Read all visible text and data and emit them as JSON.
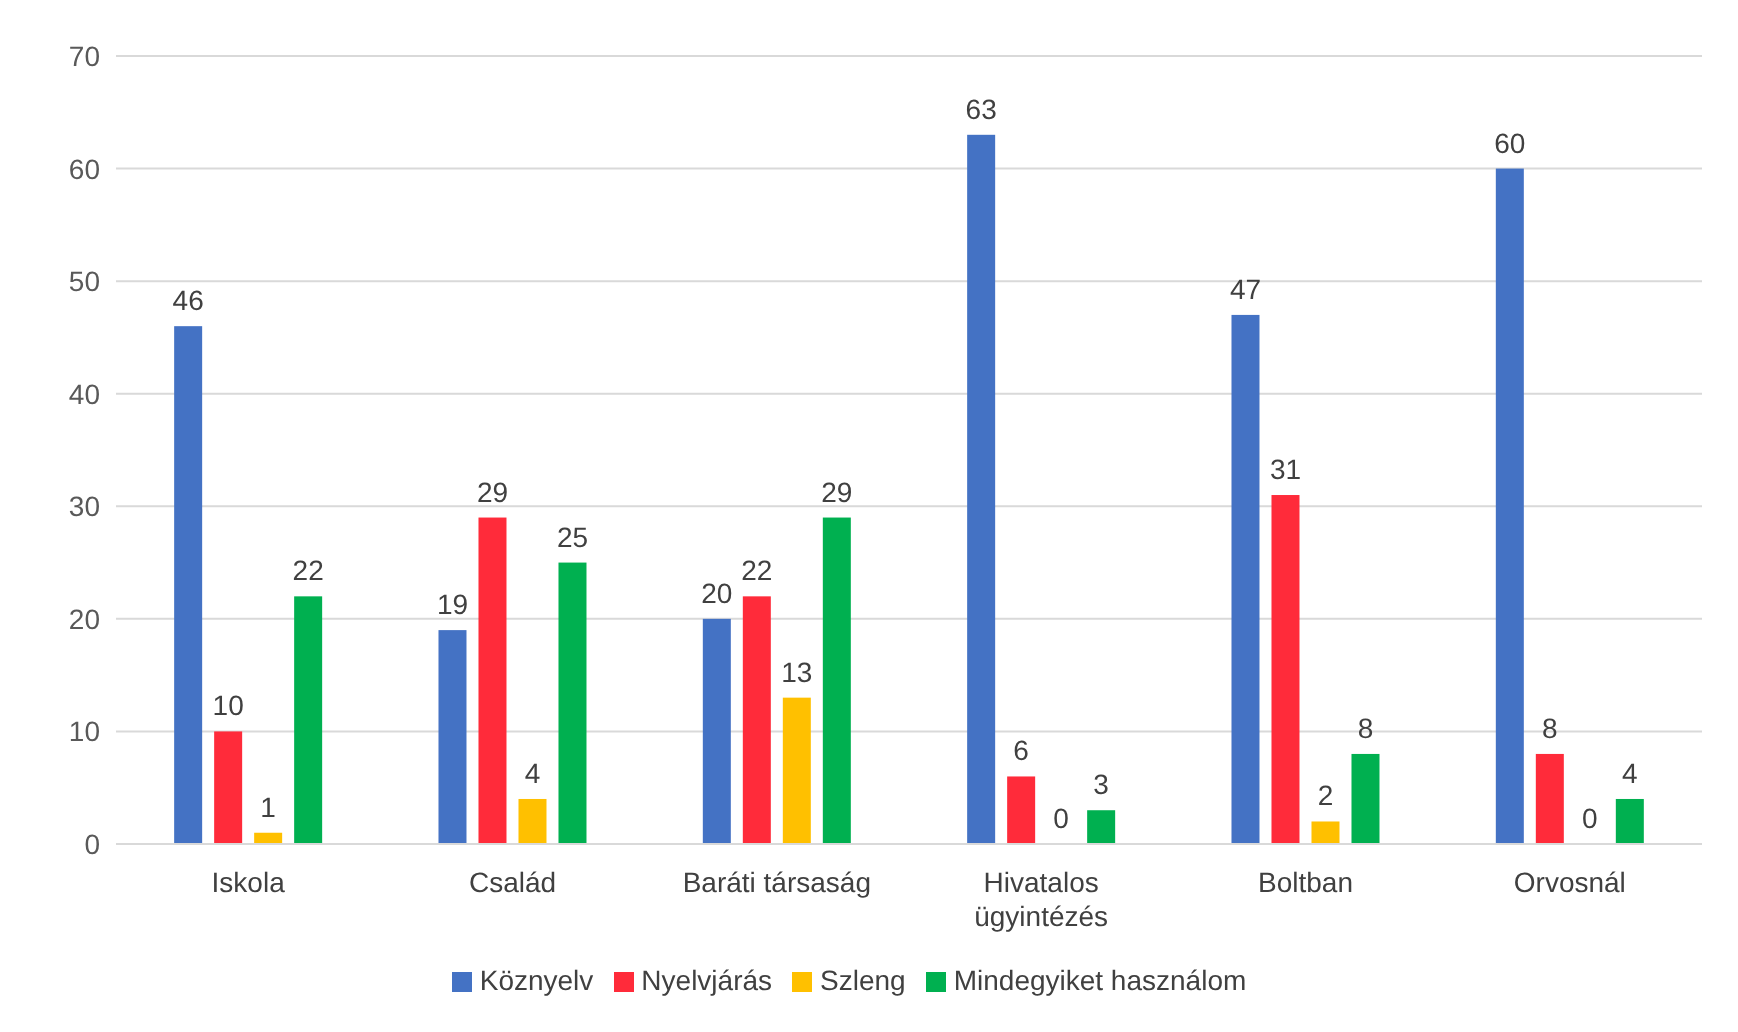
{
  "chart_data": {
    "type": "bar",
    "categories": [
      "Iskola",
      "Család",
      "Baráti társaság",
      "Hivatalos ügyintézés",
      "Boltban",
      "Orvosnál"
    ],
    "series": [
      {
        "name": "Köznyelv",
        "color": "#4472c4",
        "values": [
          46,
          19,
          20,
          63,
          47,
          60
        ]
      },
      {
        "name": "Nyelvjárás",
        "color": "#ff2b3a",
        "values": [
          10,
          29,
          22,
          6,
          31,
          8
        ]
      },
      {
        "name": "Szleng",
        "color": "#ffc000",
        "values": [
          1,
          4,
          13,
          0,
          2,
          0
        ]
      },
      {
        "name": "Mindegyiket használom",
        "color": "#00b050",
        "values": [
          22,
          25,
          29,
          3,
          8,
          4
        ]
      }
    ],
    "ylim": [
      0,
      70
    ],
    "yticks": [
      0,
      10,
      20,
      30,
      40,
      50,
      60,
      70
    ],
    "grid": "y",
    "legend": "bottom",
    "data_labels": true
  }
}
